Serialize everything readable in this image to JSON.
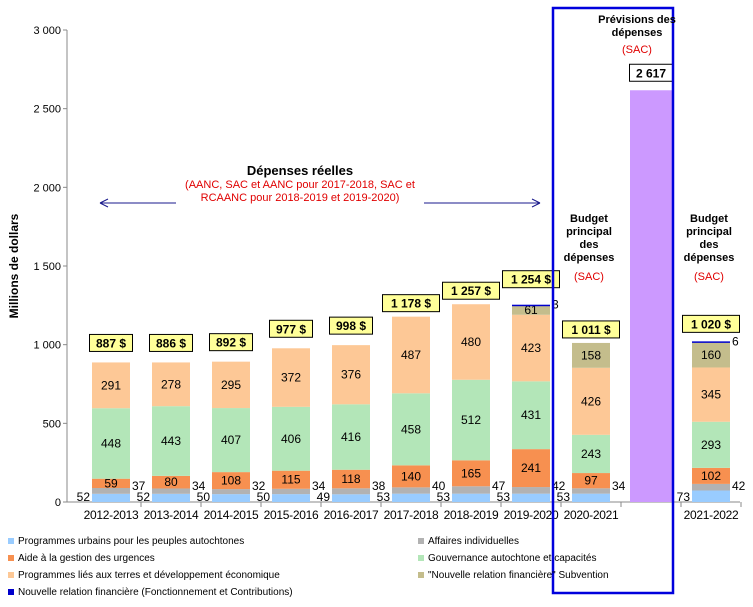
{
  "chart_data": {
    "type": "bar",
    "stacked": true,
    "ylabel": "Millions de dollars",
    "ylim": [
      0,
      3000
    ],
    "yticks": [
      "0",
      "500",
      "1 000",
      "1 500",
      "2 000",
      "2 500",
      "3 000"
    ],
    "ytick_values": [
      0,
      500,
      1000,
      1500,
      2000,
      2500,
      3000
    ],
    "categories": [
      "2012-2013",
      "2013-2014",
      "2014-2015",
      "2015-2016",
      "2016-2017",
      "2017-2018",
      "2018-2019",
      "2019-2020",
      "2020-2021",
      "",
      "2021-2022"
    ],
    "series": [
      {
        "name": "Programmes urbains pour les peuples autochtones",
        "color": "#99ccff",
        "values": [
          52,
          52,
          50,
          50,
          49,
          53,
          53,
          53,
          53,
          null,
          73
        ]
      },
      {
        "name": "Affaires individuelles",
        "color": "#b2b2b2",
        "values": [
          37,
          34,
          32,
          34,
          38,
          40,
          47,
          42,
          34,
          null,
          42
        ]
      },
      {
        "name": "Aide à la gestion des urgences",
        "color": "#f79050",
        "values": [
          59,
          80,
          108,
          115,
          118,
          140,
          165,
          241,
          97,
          null,
          102
        ]
      },
      {
        "name": "Gouvernance autochtone et capacités",
        "color": "#b3e6b8",
        "values": [
          448,
          443,
          407,
          406,
          416,
          458,
          512,
          431,
          243,
          null,
          293
        ]
      },
      {
        "name": "Programmes liés aux terres et développement économique",
        "color": "#fdc896",
        "values": [
          291,
          278,
          295,
          372,
          376,
          487,
          480,
          423,
          426,
          null,
          345
        ]
      },
      {
        "name": "\"Nouvelle relation financière\" Subvention",
        "color": "#c4bd8c",
        "values": [
          null,
          null,
          null,
          null,
          null,
          null,
          null,
          61,
          158,
          null,
          160
        ]
      },
      {
        "name": "Nouvelle relation financière (Fonctionnement et Contributions)",
        "color": "#0000cc",
        "values": [
          null,
          null,
          null,
          null,
          null,
          null,
          null,
          3,
          null,
          null,
          6
        ]
      },
      {
        "name": "Prévisions des dépenses",
        "color": "#cc99ff",
        "values": [
          null,
          null,
          null,
          null,
          null,
          null,
          null,
          null,
          null,
          2617,
          null
        ],
        "show_in_legend": false
      }
    ],
    "totals": [
      "887 $",
      "886 $",
      "892 $",
      "977 $",
      "998 $",
      "1 178 $",
      "1 257 $",
      "1 254 $",
      "1 011 $",
      "2 617",
      "1 020 $"
    ],
    "legend_position": "bottom"
  },
  "annotations": {
    "actual_title": "Dépenses réelles",
    "actual_sub": "(AANC, SAC et AANC pour 2017-2018, SAC et RCAANC pour 2018-2019 et 2019-2020)",
    "forecast_title": "Prévisions des dépenses",
    "forecast_sub": "(SAC)",
    "main_est_title": "Budget principal des dépenses",
    "main_est_sub": "(SAC)",
    "main_est2_title": "Budget principal des dépenses",
    "main_est2_sub": "(SAC)"
  }
}
